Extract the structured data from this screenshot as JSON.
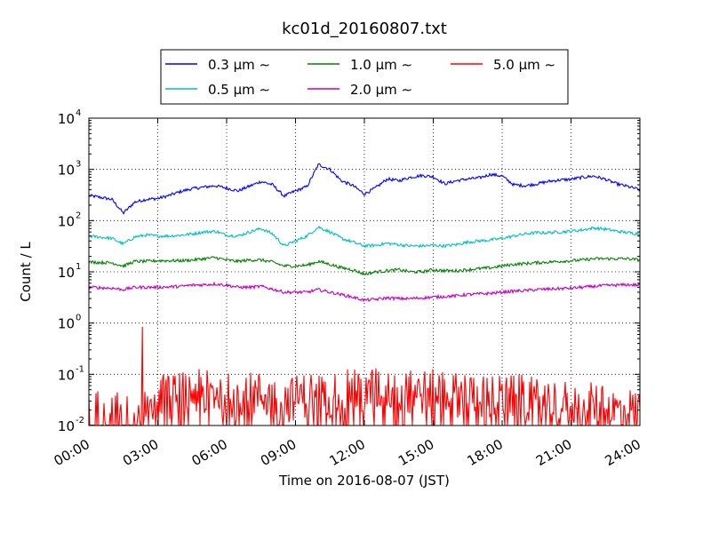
{
  "chart_data": {
    "type": "line",
    "title": "kc01d_20160807.txt",
    "xlabel": "Time on 2016-08-07 (JST)",
    "ylabel": "Count / L",
    "x_unit": "hours",
    "xlim": [
      0,
      24
    ],
    "ylim": [
      0.01,
      10000
    ],
    "yscale": "log",
    "grid": true,
    "legend_position": "top-center",
    "x_ticks": [
      "00:00",
      "03:00",
      "06:00",
      "09:00",
      "12:00",
      "15:00",
      "18:00",
      "21:00",
      "24:00"
    ],
    "y_ticks": [
      {
        "base": "10",
        "exp": "-2"
      },
      {
        "base": "10",
        "exp": "-1"
      },
      {
        "base": "10",
        "exp": "0"
      },
      {
        "base": "10",
        "exp": "1"
      },
      {
        "base": "10",
        "exp": "2"
      },
      {
        "base": "10",
        "exp": "3"
      },
      {
        "base": "10",
        "exp": "4"
      }
    ],
    "x": [
      0,
      1,
      1.5,
      2,
      2.5,
      3,
      3.5,
      4,
      4.5,
      5,
      5.5,
      6,
      6.5,
      7,
      7.5,
      8,
      8.5,
      9,
      9.5,
      10,
      10.5,
      11,
      11.5,
      12,
      12.5,
      13,
      13.5,
      14,
      14.5,
      15,
      15.5,
      16,
      16.5,
      17,
      17.5,
      18,
      18.5,
      19,
      19.5,
      20,
      20.5,
      21,
      21.5,
      22,
      22.5,
      23,
      23.5,
      24
    ],
    "series": [
      {
        "name": "0.3",
        "color": "#0000ff",
        "values": [
          310,
          260,
          140,
          230,
          260,
          270,
          310,
          370,
          420,
          450,
          480,
          430,
          380,
          470,
          580,
          500,
          300,
          380,
          460,
          1250,
          1000,
          600,
          480,
          330,
          440,
          650,
          600,
          700,
          760,
          720,
          520,
          600,
          650,
          680,
          800,
          740,
          500,
          480,
          520,
          580,
          620,
          640,
          700,
          740,
          640,
          520,
          460,
          400
        ]
      },
      {
        "name": "0.5",
        "color": "#00bfbf",
        "values": [
          50,
          45,
          35,
          48,
          52,
          50,
          50,
          52,
          55,
          60,
          62,
          52,
          50,
          60,
          70,
          55,
          32,
          40,
          50,
          75,
          60,
          45,
          38,
          32,
          33,
          36,
          34,
          32,
          32,
          33,
          32,
          34,
          38,
          40,
          42,
          45,
          50,
          55,
          58,
          58,
          60,
          62,
          66,
          72,
          68,
          62,
          58,
          55
        ]
      },
      {
        "name": "1.0",
        "color": "#008000",
        "values": [
          15.5,
          15,
          13,
          16,
          16,
          16.5,
          16.5,
          16.5,
          17,
          18,
          19,
          17,
          16,
          17,
          17,
          15.5,
          13,
          13,
          13.5,
          16,
          14,
          12,
          11,
          9,
          10,
          10.5,
          11,
          10,
          10,
          11,
          10.5,
          10.5,
          11,
          11.5,
          12,
          13,
          14,
          14.5,
          15,
          15.5,
          16,
          16.5,
          17,
          18,
          18,
          18,
          18,
          17
        ]
      },
      {
        "name": "2.0",
        "color": "#bf00bf",
        "values": [
          5,
          4.8,
          4.5,
          5,
          5,
          5,
          5.1,
          5.2,
          5.5,
          5.6,
          5.8,
          5.5,
          5,
          5,
          5.2,
          4.6,
          4,
          4,
          4,
          4.5,
          4,
          3.6,
          3.2,
          2.8,
          2.9,
          3.1,
          3,
          3,
          3.1,
          3.2,
          3.3,
          3.4,
          3.6,
          3.7,
          3.8,
          4,
          4.2,
          4.3,
          4.5,
          4.6,
          4.7,
          4.8,
          5,
          5.2,
          5.4,
          5.5,
          5.6,
          5.5
        ]
      },
      {
        "name": "5.0",
        "color": "#ff0000",
        "noise": true,
        "values": [
          0.02,
          0.02,
          0.015,
          0.013,
          0.03,
          0.04,
          0.035,
          0.04,
          0.045,
          0.045,
          0.045,
          0.04,
          0.04,
          0.04,
          0.04,
          0.035,
          0.03,
          0.035,
          0.04,
          0.045,
          0.04,
          0.045,
          0.045,
          0.045,
          0.05,
          0.05,
          0.05,
          0.045,
          0.045,
          0.045,
          0.045,
          0.04,
          0.04,
          0.04,
          0.035,
          0.035,
          0.035,
          0.035,
          0.03,
          0.03,
          0.03,
          0.025,
          0.025,
          0.025,
          0.02,
          0.02,
          0.02,
          0.02
        ],
        "spike": {
          "x": 2.33,
          "value": 0.85
        }
      }
    ]
  },
  "legend": {
    "suffix": "μm  ∼",
    "items": [
      {
        "label": "0.3",
        "color": "#0000ff"
      },
      {
        "label": "1.0",
        "color": "#008000"
      },
      {
        "label": "5.0",
        "color": "#ff0000"
      },
      {
        "label": "0.5",
        "color": "#00bfbf"
      },
      {
        "label": "2.0",
        "color": "#bf00bf"
      }
    ]
  }
}
